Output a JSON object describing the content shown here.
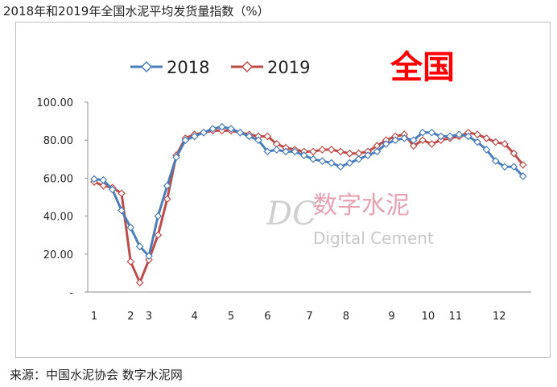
{
  "page": {
    "title": "2018年和2019年全国水泥平均发货量指数（%）",
    "source": "来源：中国水泥协会  数字水泥网"
  },
  "watermark": {
    "cn": "数字水泥",
    "en": "Digital Cement",
    "logo": "DC"
  },
  "colors": {
    "series_2018": "#4a7ebb",
    "series_2019": "#be4b48",
    "highlight": "#ff0000"
  },
  "chart_data": {
    "type": "line",
    "title": "全国",
    "y_tick_labels": [
      "-",
      "20.00",
      "40.00",
      "60.00",
      "80.00",
      "100.00"
    ],
    "y_ticks": [
      0,
      20,
      40,
      60,
      80,
      100
    ],
    "ylim": [
      0,
      100
    ],
    "x_range": [
      1,
      12.8
    ],
    "month_ticks": [
      {
        "label": "1",
        "x": 1
      },
      {
        "label": "2",
        "x": 2
      },
      {
        "label": "3",
        "x": 2.5
      },
      {
        "label": "4",
        "x": 3.75
      },
      {
        "label": "5",
        "x": 4.75
      },
      {
        "label": "6",
        "x": 5.75
      },
      {
        "label": "7",
        "x": 6.9
      },
      {
        "label": "8",
        "x": 7.9
      },
      {
        "label": "9",
        "x": 9.15
      },
      {
        "label": "10",
        "x": 10.15
      },
      {
        "label": "11",
        "x": 10.9
      },
      {
        "label": "12",
        "x": 12.1
      }
    ],
    "legend_position": "top-left",
    "grid": false,
    "series": [
      {
        "name": "2018",
        "x": [
          1.0,
          1.25,
          1.5,
          1.75,
          2.0,
          2.25,
          2.5,
          2.75,
          3.0,
          3.25,
          3.5,
          3.75,
          4.0,
          4.25,
          4.5,
          4.75,
          5.0,
          5.25,
          5.5,
          5.75,
          6.0,
          6.25,
          6.5,
          6.75,
          7.0,
          7.25,
          7.5,
          7.75,
          8.0,
          8.25,
          8.5,
          8.75,
          9.0,
          9.25,
          9.5,
          9.75,
          10.0,
          10.25,
          10.5,
          10.75,
          11.0,
          11.25,
          11.5,
          11.75,
          12.0,
          12.25,
          12.5,
          12.75
        ],
        "values": [
          59.5,
          59.0,
          54.0,
          43.0,
          34.0,
          24.0,
          19.0,
          40.0,
          56.0,
          71.0,
          80.0,
          82.0,
          84.0,
          86.0,
          87.0,
          86.0,
          84.0,
          82.0,
          80.0,
          74.0,
          75.0,
          74.0,
          74.0,
          72.0,
          70.0,
          69.0,
          68.0,
          66.0,
          68.0,
          70.0,
          72.0,
          74.0,
          78.0,
          80.0,
          81.0,
          80.0,
          84.0,
          84.0,
          82.0,
          82.0,
          83.0,
          82.0,
          79.0,
          75.0,
          69.0,
          66.0,
          66.0,
          61.0
        ]
      },
      {
        "name": "2019",
        "x": [
          1.0,
          1.25,
          1.5,
          1.75,
          2.0,
          2.25,
          2.5,
          2.75,
          3.0,
          3.25,
          3.5,
          3.75,
          4.0,
          4.25,
          4.5,
          4.75,
          5.0,
          5.25,
          5.5,
          5.75,
          6.0,
          6.25,
          6.5,
          6.75,
          7.0,
          7.25,
          7.5,
          7.75,
          8.0,
          8.25,
          8.5,
          8.75,
          9.0,
          9.25,
          9.5,
          9.75,
          10.0,
          10.25,
          10.5,
          10.75,
          11.0,
          11.25,
          11.5,
          11.75,
          12.0,
          12.25,
          12.5,
          12.75
        ],
        "values": [
          58.0,
          56.0,
          55.0,
          52.0,
          16.0,
          5.0,
          17.0,
          30.0,
          49.0,
          72.0,
          81.0,
          83.0,
          84.0,
          85.0,
          85.0,
          85.0,
          84.0,
          83.0,
          82.0,
          82.0,
          78.0,
          76.0,
          75.0,
          74.0,
          74.0,
          75.0,
          75.0,
          74.0,
          73.0,
          73.0,
          74.0,
          77.0,
          80.0,
          82.0,
          83.0,
          77.0,
          80.0,
          78.0,
          80.0,
          81.0,
          82.0,
          84.0,
          83.0,
          81.0,
          79.0,
          78.0,
          73.0,
          67.0
        ]
      }
    ]
  }
}
